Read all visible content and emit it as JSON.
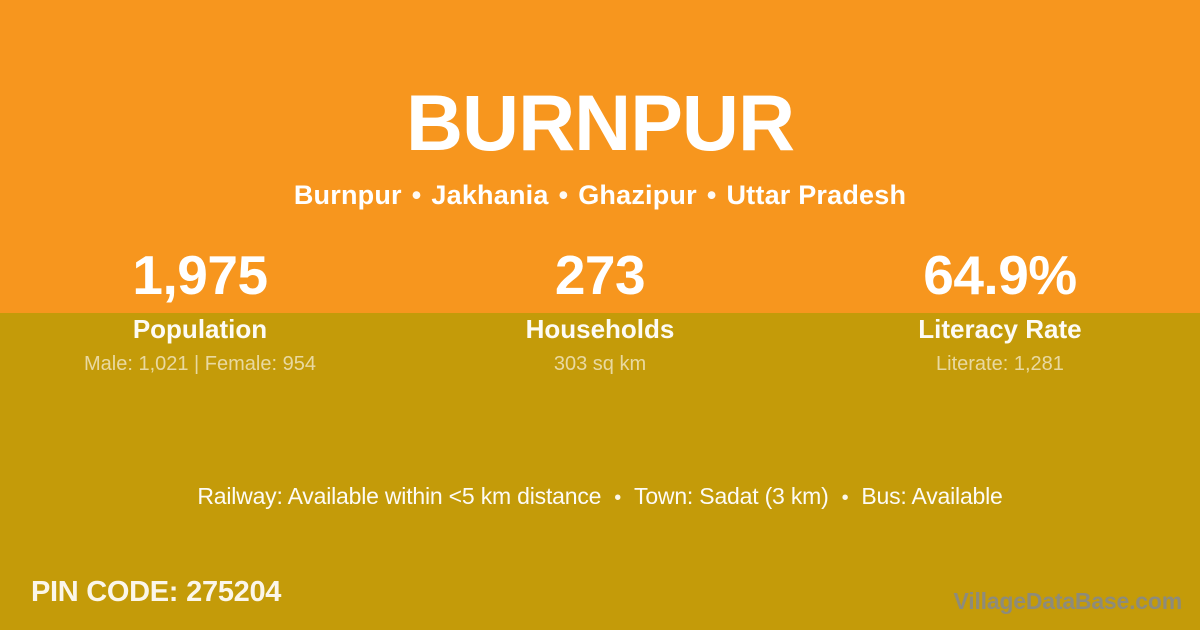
{
  "colors": {
    "band_top": "#F7961E",
    "band_bottom": "#C49B09",
    "text_primary": "#FFFFFF",
    "text_muted": "rgba(255,255,255,0.62)",
    "pin_text": "#FBF6EA",
    "watermark_gray": "#8B8B82"
  },
  "header": {
    "title": "BURNPUR",
    "breadcrumb": {
      "parts": [
        "Burnpur",
        "Jakhania",
        "Ghazipur",
        "Uttar Pradesh"
      ],
      "separator": "•"
    }
  },
  "stats": [
    {
      "value": "1,975",
      "label": "Population",
      "detail": "Male: 1,021 | Female: 954"
    },
    {
      "value": "273",
      "label": "Households",
      "detail": "303 sq km"
    },
    {
      "value": "64.9%",
      "label": "Literacy Rate",
      "detail": "Literate: 1,281"
    }
  ],
  "info_row": {
    "items": [
      "Railway: Available within <5 km distance",
      "Town: Sadat (3 km)",
      "Bus: Available"
    ],
    "separator": "•"
  },
  "footer": {
    "pin_label": "PIN CODE:",
    "pin_value": "275204",
    "watermark": "VillageDataBase.com"
  }
}
